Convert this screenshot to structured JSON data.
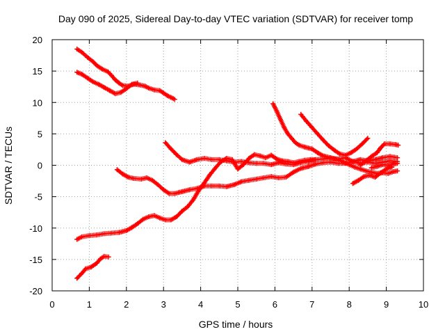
{
  "chart_data": {
    "type": "scatter",
    "title": "Day 090 of 2025, Sidereal Day-to-day VTEC variation (SDTVAR) for receiver tomp",
    "xlabel": "GPS time / hours",
    "ylabel": "SDTVAR / TECUs",
    "xlim": [
      0,
      10
    ],
    "ylim": [
      -20,
      20
    ],
    "x_ticks": [
      0,
      1,
      2,
      3,
      4,
      5,
      6,
      7,
      8,
      9,
      10
    ],
    "y_ticks": [
      -20,
      -15,
      -10,
      -5,
      0,
      5,
      10,
      15,
      20
    ],
    "grid": true,
    "marker": "+",
    "series_color": "#ff0000",
    "series": [
      {
        "points": [
          [
            0.67,
            18.5
          ],
          [
            0.8,
            18.0
          ],
          [
            0.95,
            17.2
          ],
          [
            1.1,
            16.5
          ],
          [
            1.2,
            15.9
          ],
          [
            1.35,
            15.3
          ],
          [
            1.5,
            14.9
          ],
          [
            1.6,
            14.3
          ],
          [
            1.7,
            13.6
          ],
          [
            1.8,
            13.1
          ],
          [
            1.9,
            12.7
          ],
          [
            2.05,
            12.6
          ],
          [
            2.2,
            12.9
          ],
          [
            2.35,
            12.8
          ],
          [
            2.5,
            12.6
          ],
          [
            2.6,
            12.3
          ],
          [
            2.75,
            12.0
          ],
          [
            2.9,
            11.9
          ],
          [
            3.0,
            11.5
          ],
          [
            3.1,
            11.1
          ],
          [
            3.2,
            10.8
          ],
          [
            3.3,
            10.5
          ]
        ]
      },
      {
        "points": [
          [
            0.67,
            14.8
          ],
          [
            0.8,
            14.5
          ],
          [
            0.95,
            13.9
          ],
          [
            1.1,
            13.3
          ],
          [
            1.25,
            12.9
          ],
          [
            1.4,
            12.4
          ],
          [
            1.55,
            11.9
          ],
          [
            1.7,
            11.4
          ],
          [
            1.85,
            11.6
          ],
          [
            2.0,
            12.2
          ],
          [
            2.15,
            12.9
          ],
          [
            2.3,
            13.1
          ]
        ]
      },
      {
        "points": [
          [
            3.05,
            3.6
          ],
          [
            3.2,
            2.6
          ],
          [
            3.35,
            1.7
          ],
          [
            3.5,
            0.9
          ],
          [
            3.7,
            0.5
          ],
          [
            3.9,
            0.9
          ],
          [
            4.1,
            1.1
          ],
          [
            4.3,
            0.9
          ],
          [
            4.5,
            0.9
          ],
          [
            4.7,
            0.7
          ],
          [
            4.9,
            0.5
          ],
          [
            5.1,
            0.6
          ],
          [
            5.3,
            0.4
          ],
          [
            5.5,
            0.3
          ],
          [
            5.7,
            0.3
          ],
          [
            5.9,
            0.1
          ],
          [
            6.1,
            0.4
          ],
          [
            6.3,
            0.2
          ],
          [
            6.5,
            0.1
          ],
          [
            6.7,
            0.4
          ],
          [
            6.9,
            0.6
          ],
          [
            7.1,
            0.9
          ],
          [
            7.3,
            1.0
          ],
          [
            7.5,
            1.1
          ],
          [
            7.7,
            1.0
          ],
          [
            7.9,
            1.2
          ],
          [
            8.1,
            0.6
          ],
          [
            8.3,
            0.3
          ],
          [
            8.5,
            0.5
          ],
          [
            8.7,
            0.3
          ],
          [
            8.9,
            0.5
          ],
          [
            9.1,
            0.7
          ],
          [
            9.3,
            0.6
          ]
        ]
      },
      {
        "points": [
          [
            1.75,
            -0.7
          ],
          [
            1.9,
            -1.4
          ],
          [
            2.05,
            -1.9
          ],
          [
            2.2,
            -2.1
          ],
          [
            2.4,
            -2.2
          ],
          [
            2.55,
            -2.0
          ],
          [
            2.7,
            -2.4
          ],
          [
            2.85,
            -3.1
          ],
          [
            3.0,
            -3.9
          ],
          [
            3.15,
            -4.5
          ],
          [
            3.3,
            -4.5
          ],
          [
            3.5,
            -4.2
          ],
          [
            3.7,
            -3.9
          ],
          [
            3.9,
            -3.7
          ],
          [
            4.1,
            -3.3
          ],
          [
            4.3,
            -3.3
          ],
          [
            4.5,
            -3.3
          ],
          [
            4.7,
            -3.4
          ],
          [
            4.9,
            -3.1
          ],
          [
            5.1,
            -2.6
          ],
          [
            5.3,
            -2.4
          ],
          [
            5.5,
            -2.2
          ],
          [
            5.7,
            -2.0
          ],
          [
            5.9,
            -1.8
          ],
          [
            6.1,
            -2.0
          ],
          [
            6.3,
            -1.9
          ],
          [
            6.5,
            -1.1
          ],
          [
            6.7,
            -0.5
          ],
          [
            6.9,
            -0.2
          ],
          [
            7.1,
            0.2
          ],
          [
            7.3,
            0.4
          ],
          [
            7.5,
            0.5
          ],
          [
            7.7,
            0.3
          ],
          [
            7.9,
            0.3
          ],
          [
            8.1,
            0.6
          ],
          [
            8.3,
            0.9
          ],
          [
            8.5,
            0.7
          ],
          [
            8.7,
            0.9
          ],
          [
            8.9,
            1.2
          ],
          [
            9.1,
            1.4
          ],
          [
            9.3,
            1.2
          ]
        ]
      },
      {
        "points": [
          [
            0.67,
            -11.8
          ],
          [
            0.8,
            -11.4
          ],
          [
            1.0,
            -11.2
          ],
          [
            1.2,
            -11.1
          ],
          [
            1.4,
            -10.9
          ],
          [
            1.6,
            -10.8
          ],
          [
            1.8,
            -10.7
          ],
          [
            2.0,
            -10.4
          ],
          [
            2.15,
            -9.9
          ],
          [
            2.3,
            -9.3
          ],
          [
            2.45,
            -8.6
          ],
          [
            2.6,
            -8.2
          ],
          [
            2.75,
            -8.0
          ],
          [
            2.9,
            -8.4
          ],
          [
            3.05,
            -8.7
          ],
          [
            3.2,
            -8.7
          ],
          [
            3.35,
            -8.2
          ],
          [
            3.5,
            -7.3
          ],
          [
            3.65,
            -6.6
          ],
          [
            3.8,
            -5.5
          ],
          [
            3.95,
            -4.0
          ],
          [
            4.1,
            -2.8
          ],
          [
            4.25,
            -1.5
          ],
          [
            4.4,
            -0.4
          ],
          [
            4.55,
            0.6
          ],
          [
            4.7,
            1.1
          ],
          [
            4.85,
            0.9
          ],
          [
            5.0,
            -0.6
          ],
          [
            5.15,
            0.1
          ],
          [
            5.3,
            1.1
          ],
          [
            5.45,
            1.7
          ],
          [
            5.6,
            1.5
          ],
          [
            5.75,
            1.2
          ],
          [
            5.9,
            1.6
          ],
          [
            6.05,
            1.0
          ],
          [
            6.2,
            0.7
          ],
          [
            6.35,
            0.6
          ],
          [
            6.5,
            0.4
          ],
          [
            6.65,
            0.6
          ],
          [
            6.8,
            0.8
          ],
          [
            6.95,
            0.9
          ],
          [
            7.1,
            0.9
          ]
        ]
      },
      {
        "points": [
          [
            0.67,
            -18.0
          ],
          [
            0.8,
            -17.2
          ],
          [
            0.9,
            -16.5
          ],
          [
            1.05,
            -16.2
          ],
          [
            1.2,
            -15.6
          ],
          [
            1.3,
            -14.9
          ],
          [
            1.4,
            -14.5
          ],
          [
            1.52,
            -14.6
          ]
        ]
      },
      {
        "points": [
          [
            5.95,
            9.8
          ],
          [
            6.05,
            8.6
          ],
          [
            6.15,
            7.3
          ],
          [
            6.25,
            6.0
          ],
          [
            6.35,
            5.0
          ],
          [
            6.45,
            4.3
          ],
          [
            6.55,
            3.6
          ],
          [
            6.65,
            3.2
          ],
          [
            6.8,
            2.9
          ],
          [
            7.0,
            2.6
          ],
          [
            7.15,
            2.0
          ],
          [
            7.3,
            1.5
          ],
          [
            7.5,
            1.2
          ],
          [
            7.7,
            0.9
          ],
          [
            7.85,
            0.5
          ],
          [
            8.0,
            0.1
          ],
          [
            8.15,
            -0.3
          ],
          [
            8.3,
            -0.6
          ],
          [
            8.45,
            -0.9
          ],
          [
            8.6,
            -1.1
          ],
          [
            8.75,
            -1.3
          ],
          [
            8.9,
            -1.2
          ],
          [
            9.05,
            -1.3
          ],
          [
            9.2,
            -1.0
          ],
          [
            9.3,
            -0.9
          ]
        ]
      },
      {
        "points": [
          [
            6.7,
            8.1
          ],
          [
            6.85,
            7.0
          ],
          [
            7.0,
            6.0
          ],
          [
            7.15,
            5.0
          ],
          [
            7.3,
            4.0
          ],
          [
            7.45,
            3.1
          ],
          [
            7.6,
            2.4
          ],
          [
            7.75,
            1.8
          ],
          [
            7.9,
            1.6
          ],
          [
            8.05,
            2.0
          ],
          [
            8.2,
            2.6
          ],
          [
            8.35,
            3.4
          ],
          [
            8.5,
            4.3
          ]
        ]
      },
      {
        "points": [
          [
            8.1,
            -2.9
          ],
          [
            8.25,
            -2.4
          ],
          [
            8.4,
            -1.8
          ],
          [
            8.55,
            -1.6
          ],
          [
            8.7,
            -1.9
          ],
          [
            8.85,
            -1.2
          ],
          [
            9.0,
            -0.6
          ],
          [
            9.15,
            -0.3
          ]
        ]
      },
      {
        "points": [
          [
            8.3,
            0.0
          ],
          [
            8.45,
            0.7
          ],
          [
            8.6,
            1.4
          ],
          [
            8.75,
            2.0
          ],
          [
            8.85,
            2.8
          ],
          [
            8.95,
            3.4
          ],
          [
            9.1,
            3.4
          ],
          [
            9.25,
            3.3
          ],
          [
            9.32,
            3.2
          ]
        ]
      },
      {
        "points": [
          [
            8.6,
            -0.4
          ],
          [
            8.75,
            -0.2
          ],
          [
            8.9,
            0.1
          ],
          [
            9.05,
            0.0
          ],
          [
            9.2,
            0.2
          ],
          [
            9.3,
            0.3
          ]
        ]
      }
    ]
  }
}
